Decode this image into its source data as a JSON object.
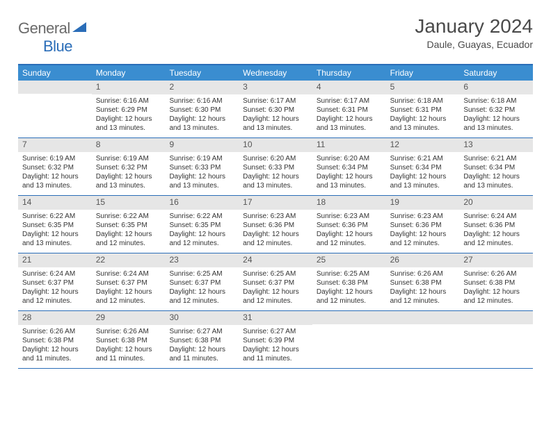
{
  "logo": {
    "text1": "General",
    "text2": "Blue"
  },
  "header": {
    "month_title": "January 2024",
    "location": "Daule, Guayas, Ecuador"
  },
  "colors": {
    "header_bar": "#3a8dd0",
    "border": "#2a6db8",
    "daynum_bg": "#e6e6e6",
    "text": "#333333",
    "logo_gray": "#6a6a6a",
    "logo_blue": "#2a6db8"
  },
  "weekdays": [
    "Sunday",
    "Monday",
    "Tuesday",
    "Wednesday",
    "Thursday",
    "Friday",
    "Saturday"
  ],
  "weeks": [
    [
      {
        "num": "",
        "sunrise": "",
        "sunset": "",
        "daylight": ""
      },
      {
        "num": "1",
        "sunrise": "Sunrise: 6:16 AM",
        "sunset": "Sunset: 6:29 PM",
        "daylight": "Daylight: 12 hours and 13 minutes."
      },
      {
        "num": "2",
        "sunrise": "Sunrise: 6:16 AM",
        "sunset": "Sunset: 6:30 PM",
        "daylight": "Daylight: 12 hours and 13 minutes."
      },
      {
        "num": "3",
        "sunrise": "Sunrise: 6:17 AM",
        "sunset": "Sunset: 6:30 PM",
        "daylight": "Daylight: 12 hours and 13 minutes."
      },
      {
        "num": "4",
        "sunrise": "Sunrise: 6:17 AM",
        "sunset": "Sunset: 6:31 PM",
        "daylight": "Daylight: 12 hours and 13 minutes."
      },
      {
        "num": "5",
        "sunrise": "Sunrise: 6:18 AM",
        "sunset": "Sunset: 6:31 PM",
        "daylight": "Daylight: 12 hours and 13 minutes."
      },
      {
        "num": "6",
        "sunrise": "Sunrise: 6:18 AM",
        "sunset": "Sunset: 6:32 PM",
        "daylight": "Daylight: 12 hours and 13 minutes."
      }
    ],
    [
      {
        "num": "7",
        "sunrise": "Sunrise: 6:19 AM",
        "sunset": "Sunset: 6:32 PM",
        "daylight": "Daylight: 12 hours and 13 minutes."
      },
      {
        "num": "8",
        "sunrise": "Sunrise: 6:19 AM",
        "sunset": "Sunset: 6:32 PM",
        "daylight": "Daylight: 12 hours and 13 minutes."
      },
      {
        "num": "9",
        "sunrise": "Sunrise: 6:19 AM",
        "sunset": "Sunset: 6:33 PM",
        "daylight": "Daylight: 12 hours and 13 minutes."
      },
      {
        "num": "10",
        "sunrise": "Sunrise: 6:20 AM",
        "sunset": "Sunset: 6:33 PM",
        "daylight": "Daylight: 12 hours and 13 minutes."
      },
      {
        "num": "11",
        "sunrise": "Sunrise: 6:20 AM",
        "sunset": "Sunset: 6:34 PM",
        "daylight": "Daylight: 12 hours and 13 minutes."
      },
      {
        "num": "12",
        "sunrise": "Sunrise: 6:21 AM",
        "sunset": "Sunset: 6:34 PM",
        "daylight": "Daylight: 12 hours and 13 minutes."
      },
      {
        "num": "13",
        "sunrise": "Sunrise: 6:21 AM",
        "sunset": "Sunset: 6:34 PM",
        "daylight": "Daylight: 12 hours and 13 minutes."
      }
    ],
    [
      {
        "num": "14",
        "sunrise": "Sunrise: 6:22 AM",
        "sunset": "Sunset: 6:35 PM",
        "daylight": "Daylight: 12 hours and 13 minutes."
      },
      {
        "num": "15",
        "sunrise": "Sunrise: 6:22 AM",
        "sunset": "Sunset: 6:35 PM",
        "daylight": "Daylight: 12 hours and 12 minutes."
      },
      {
        "num": "16",
        "sunrise": "Sunrise: 6:22 AM",
        "sunset": "Sunset: 6:35 PM",
        "daylight": "Daylight: 12 hours and 12 minutes."
      },
      {
        "num": "17",
        "sunrise": "Sunrise: 6:23 AM",
        "sunset": "Sunset: 6:36 PM",
        "daylight": "Daylight: 12 hours and 12 minutes."
      },
      {
        "num": "18",
        "sunrise": "Sunrise: 6:23 AM",
        "sunset": "Sunset: 6:36 PM",
        "daylight": "Daylight: 12 hours and 12 minutes."
      },
      {
        "num": "19",
        "sunrise": "Sunrise: 6:23 AM",
        "sunset": "Sunset: 6:36 PM",
        "daylight": "Daylight: 12 hours and 12 minutes."
      },
      {
        "num": "20",
        "sunrise": "Sunrise: 6:24 AM",
        "sunset": "Sunset: 6:36 PM",
        "daylight": "Daylight: 12 hours and 12 minutes."
      }
    ],
    [
      {
        "num": "21",
        "sunrise": "Sunrise: 6:24 AM",
        "sunset": "Sunset: 6:37 PM",
        "daylight": "Daylight: 12 hours and 12 minutes."
      },
      {
        "num": "22",
        "sunrise": "Sunrise: 6:24 AM",
        "sunset": "Sunset: 6:37 PM",
        "daylight": "Daylight: 12 hours and 12 minutes."
      },
      {
        "num": "23",
        "sunrise": "Sunrise: 6:25 AM",
        "sunset": "Sunset: 6:37 PM",
        "daylight": "Daylight: 12 hours and 12 minutes."
      },
      {
        "num": "24",
        "sunrise": "Sunrise: 6:25 AM",
        "sunset": "Sunset: 6:37 PM",
        "daylight": "Daylight: 12 hours and 12 minutes."
      },
      {
        "num": "25",
        "sunrise": "Sunrise: 6:25 AM",
        "sunset": "Sunset: 6:38 PM",
        "daylight": "Daylight: 12 hours and 12 minutes."
      },
      {
        "num": "26",
        "sunrise": "Sunrise: 6:26 AM",
        "sunset": "Sunset: 6:38 PM",
        "daylight": "Daylight: 12 hours and 12 minutes."
      },
      {
        "num": "27",
        "sunrise": "Sunrise: 6:26 AM",
        "sunset": "Sunset: 6:38 PM",
        "daylight": "Daylight: 12 hours and 12 minutes."
      }
    ],
    [
      {
        "num": "28",
        "sunrise": "Sunrise: 6:26 AM",
        "sunset": "Sunset: 6:38 PM",
        "daylight": "Daylight: 12 hours and 11 minutes."
      },
      {
        "num": "29",
        "sunrise": "Sunrise: 6:26 AM",
        "sunset": "Sunset: 6:38 PM",
        "daylight": "Daylight: 12 hours and 11 minutes."
      },
      {
        "num": "30",
        "sunrise": "Sunrise: 6:27 AM",
        "sunset": "Sunset: 6:38 PM",
        "daylight": "Daylight: 12 hours and 11 minutes."
      },
      {
        "num": "31",
        "sunrise": "Sunrise: 6:27 AM",
        "sunset": "Sunset: 6:39 PM",
        "daylight": "Daylight: 12 hours and 11 minutes."
      },
      {
        "num": "",
        "sunrise": "",
        "sunset": "",
        "daylight": ""
      },
      {
        "num": "",
        "sunrise": "",
        "sunset": "",
        "daylight": ""
      },
      {
        "num": "",
        "sunrise": "",
        "sunset": "",
        "daylight": ""
      }
    ]
  ]
}
